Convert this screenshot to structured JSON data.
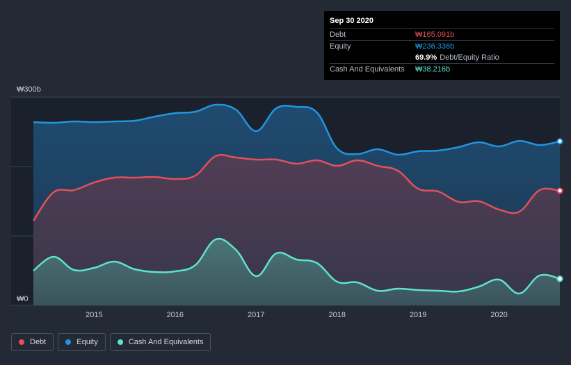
{
  "colors": {
    "debt": "#e4505a",
    "equity": "#2394e0",
    "cash": "#5fe3cd",
    "background": "#232a36"
  },
  "tooltip": {
    "date": "Sep 30 2020",
    "debt_label": "Debt",
    "debt_value": "₩165.091b",
    "equity_label": "Equity",
    "equity_value": "₩236.336b",
    "ratio_value": "69.9%",
    "ratio_label": "Debt/Equity Ratio",
    "cash_label": "Cash And Equivalents",
    "cash_value": "₩38.216b"
  },
  "legend": {
    "debt": "Debt",
    "equity": "Equity",
    "cash": "Cash And Equivalents"
  },
  "chart_data": {
    "type": "area",
    "title": "",
    "xlabel": "",
    "ylabel": "",
    "ylim": [
      0,
      300
    ],
    "xlim": [
      2014.25,
      2020.75
    ],
    "y_tick_labels": [
      {
        "value": 300,
        "label": "₩300b"
      },
      {
        "value": 0,
        "label": "₩0"
      }
    ],
    "x_ticks": [
      2015,
      2016,
      2017,
      2018,
      2019,
      2020
    ],
    "x_tick_labels": [
      "2015",
      "2016",
      "2017",
      "2018",
      "2019",
      "2020"
    ],
    "series": [
      {
        "name": "Equity",
        "x": [
          2014.25,
          2014.5,
          2014.75,
          2015.0,
          2015.25,
          2015.5,
          2015.75,
          2016.0,
          2016.25,
          2016.5,
          2016.75,
          2017.0,
          2017.25,
          2017.5,
          2017.75,
          2018.0,
          2018.25,
          2018.5,
          2018.75,
          2019.0,
          2019.25,
          2019.5,
          2019.75,
          2020.0,
          2020.25,
          2020.5,
          2020.75
        ],
        "values": [
          264,
          263,
          265,
          264,
          265,
          266,
          272,
          277,
          279,
          289,
          282,
          251,
          284,
          286,
          278,
          226,
          218,
          225,
          217,
          222,
          223,
          228,
          235,
          229,
          237,
          231,
          236.336
        ]
      },
      {
        "name": "Debt",
        "x": [
          2014.25,
          2014.5,
          2014.75,
          2015.0,
          2015.25,
          2015.5,
          2015.75,
          2016.0,
          2016.25,
          2016.5,
          2016.75,
          2017.0,
          2017.25,
          2017.5,
          2017.75,
          2018.0,
          2018.25,
          2018.5,
          2018.75,
          2019.0,
          2019.25,
          2019.5,
          2019.75,
          2020.0,
          2020.25,
          2020.5,
          2020.75
        ],
        "values": [
          122,
          163,
          166,
          177,
          184,
          184,
          185,
          182,
          187,
          215,
          213,
          210,
          210,
          204,
          209,
          201,
          209,
          201,
          194,
          168,
          164,
          149,
          150,
          138,
          135,
          166,
          165.091
        ]
      },
      {
        "name": "Cash And Equivalents",
        "x": [
          2014.25,
          2014.5,
          2014.75,
          2015.0,
          2015.25,
          2015.5,
          2015.75,
          2016.0,
          2016.25,
          2016.5,
          2016.75,
          2017.0,
          2017.25,
          2017.5,
          2017.75,
          2018.0,
          2018.25,
          2018.5,
          2018.75,
          2019.0,
          2019.25,
          2019.5,
          2019.75,
          2020.0,
          2020.25,
          2020.5,
          2020.75
        ],
        "values": [
          50,
          70,
          51,
          54,
          63,
          52,
          48,
          49,
          58,
          95,
          80,
          42,
          75,
          66,
          61,
          34,
          33,
          21,
          24,
          22,
          21,
          20,
          27,
          37,
          17,
          43,
          38.216
        ]
      }
    ]
  }
}
